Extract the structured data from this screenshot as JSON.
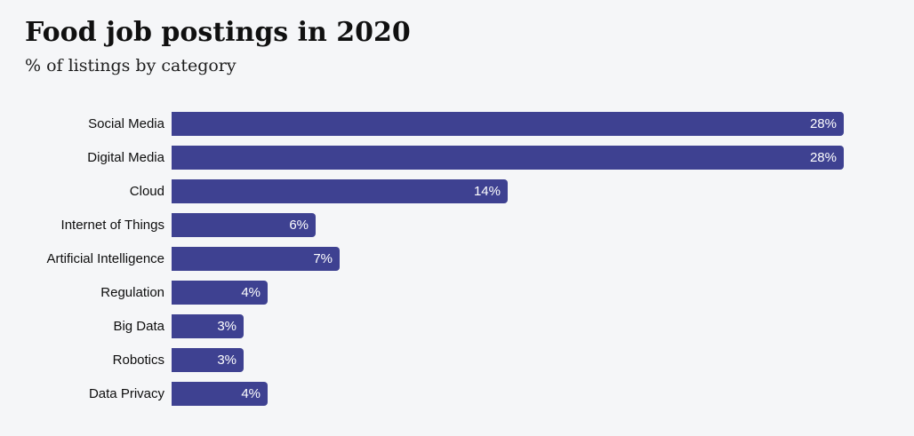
{
  "page": {
    "background_color": "#f5f6f8"
  },
  "header": {
    "title": "Food job postings in 2020",
    "subtitle": "% of listings by category"
  },
  "chart_data": {
    "type": "bar",
    "orientation": "horizontal",
    "title": "Food job postings in 2020",
    "subtitle": "% of listings by category",
    "categories": [
      "Social Media",
      "Digital Media",
      "Cloud",
      "Internet of Things",
      "Artificial Intelligence",
      "Regulation",
      "Big Data",
      "Robotics",
      "Data Privacy"
    ],
    "values": [
      28,
      28,
      14,
      6,
      7,
      4,
      3,
      3,
      4
    ],
    "value_labels": [
      "28%",
      "28%",
      "14%",
      "6%",
      "7%",
      "4%",
      "3%",
      "3%",
      "4%"
    ],
    "xlim": [
      0,
      28
    ],
    "xlabel": "",
    "ylabel": "",
    "grid": false,
    "axis_visible": false,
    "legend": false,
    "bar_color": "#3e4191",
    "value_label_color": "#ffffff",
    "category_label_color": "#0d0d0d"
  }
}
